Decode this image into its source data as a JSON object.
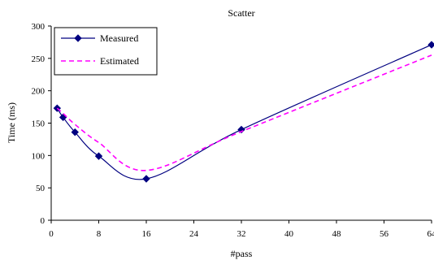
{
  "chart_data": {
    "type": "line",
    "title": "Scatter",
    "xlabel": "#pass",
    "ylabel": "Time (ms)",
    "xlim": [
      0,
      64
    ],
    "ylim": [
      0,
      300
    ],
    "x_ticks": [
      0,
      8,
      16,
      24,
      32,
      40,
      48,
      56,
      64
    ],
    "y_ticks": [
      0,
      50,
      100,
      150,
      200,
      250,
      300
    ],
    "grid": false,
    "legend_position": "top-left",
    "series": [
      {
        "name": "Measured",
        "color": "#000080",
        "marker": "diamond",
        "line_style": "solid",
        "x": [
          1,
          2,
          4,
          8,
          16,
          32,
          64
        ],
        "y": [
          173,
          159,
          136,
          99,
          64,
          140,
          271
        ]
      },
      {
        "name": "Estimated",
        "color": "#ff00ff",
        "marker": "none",
        "line_style": "dashed",
        "x": [
          1,
          2,
          4,
          8,
          16,
          32,
          64
        ],
        "y": [
          173,
          165,
          148,
          120,
          77,
          137,
          255
        ]
      }
    ]
  }
}
